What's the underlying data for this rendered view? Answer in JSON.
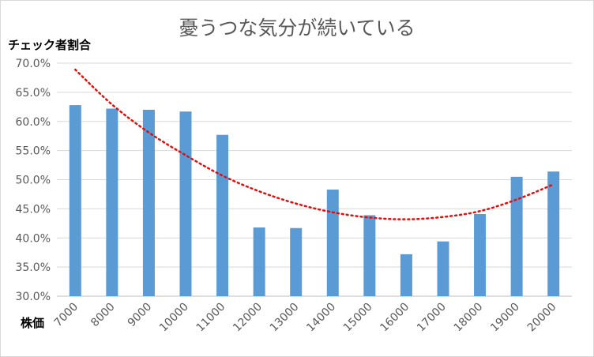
{
  "chart_data": {
    "type": "bar",
    "title": "憂うつな気分が続いている",
    "ylabel": "チェック者割合",
    "xlabel": "株価",
    "categories": [
      "7000",
      "8000",
      "9000",
      "10000",
      "11000",
      "12000",
      "13000",
      "14000",
      "15000",
      "16000",
      "17000",
      "18000",
      "19000",
      "20000"
    ],
    "series": [
      {
        "values": [
          62.8,
          62.2,
          62.0,
          61.7,
          57.7,
          41.8,
          41.7,
          48.3,
          43.9,
          37.2,
          39.4,
          44.1,
          50.5,
          51.4
        ]
      }
    ],
    "trendline": {
      "type": "polynomial",
      "values": [
        68.9,
        62.9,
        58.1,
        54.2,
        50.7,
        48.0,
        45.9,
        44.4,
        43.5,
        43.2,
        43.6,
        44.6,
        46.6,
        49.2
      ]
    },
    "ylim": [
      30,
      70
    ],
    "yticks": [
      "30.0%",
      "35.0%",
      "40.0%",
      "45.0%",
      "50.0%",
      "55.0%",
      "60.0%",
      "65.0%",
      "70.0%"
    ],
    "grid": true,
    "colors": {
      "bar": "#5b9bd5",
      "trend": "#e01010",
      "grid": "#d9d9d9",
      "axis": "#bfbfbf"
    }
  }
}
